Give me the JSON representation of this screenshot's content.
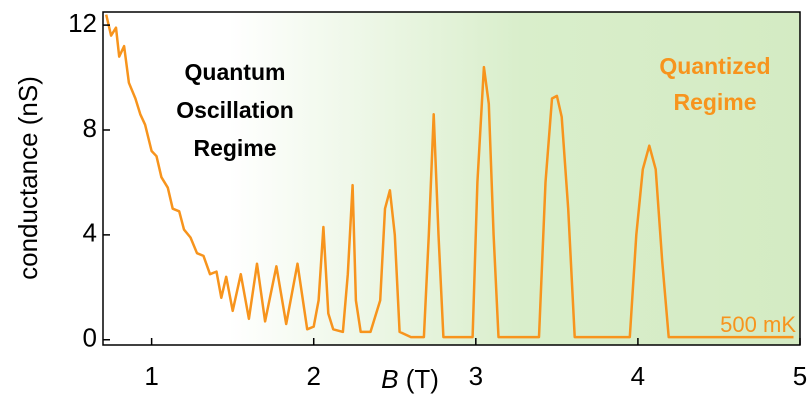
{
  "chart_data": {
    "type": "line",
    "xlabel": {
      "symbol": "B",
      "unit": "(T)"
    },
    "ylabel": "conductance (nS)",
    "annotations": [
      [
        "Quantum",
        "Oscillation",
        "Regime"
      ],
      [
        "Quantized",
        "Regime"
      ],
      [
        "500 mK"
      ]
    ],
    "xlim": [
      0.7,
      5
    ],
    "ylim": [
      -0.2,
      12.5
    ],
    "xticks": [
      1,
      2,
      3,
      4,
      5
    ],
    "yticks": [
      0,
      4,
      8,
      12
    ],
    "series": [
      {
        "name": "conductance",
        "color": "#f7941d",
        "x": [
          0.72,
          0.75,
          0.78,
          0.8,
          0.83,
          0.86,
          0.9,
          0.93,
          0.96,
          1.0,
          1.03,
          1.06,
          1.1,
          1.13,
          1.17,
          1.2,
          1.24,
          1.28,
          1.32,
          1.36,
          1.4,
          1.43,
          1.46,
          1.5,
          1.55,
          1.6,
          1.65,
          1.7,
          1.77,
          1.83,
          1.9,
          1.96,
          2.0,
          2.03,
          2.06,
          2.09,
          2.12,
          2.18,
          2.21,
          2.24,
          2.26,
          2.29,
          2.35,
          2.41,
          2.44,
          2.47,
          2.5,
          2.53,
          2.6,
          2.68,
          2.71,
          2.74,
          2.77,
          2.8,
          2.98,
          3.01,
          3.05,
          3.08,
          3.11,
          3.14,
          3.39,
          3.43,
          3.47,
          3.5,
          3.53,
          3.57,
          3.61,
          3.95,
          3.99,
          4.03,
          4.07,
          4.11,
          4.15,
          4.19,
          4.96
        ],
        "values": [
          12.4,
          11.6,
          11.9,
          10.8,
          11.2,
          9.8,
          9.2,
          8.6,
          8.2,
          7.2,
          7.0,
          6.2,
          5.8,
          5.0,
          4.9,
          4.2,
          3.9,
          3.3,
          3.2,
          2.5,
          2.6,
          1.6,
          2.4,
          1.1,
          2.5,
          0.8,
          2.9,
          0.7,
          2.8,
          0.6,
          2.9,
          0.4,
          0.5,
          1.5,
          4.3,
          1.0,
          0.4,
          0.3,
          2.5,
          5.9,
          1.5,
          0.3,
          0.3,
          1.5,
          5.0,
          5.7,
          4.0,
          0.3,
          0.1,
          0.1,
          4.0,
          8.6,
          4.0,
          0.1,
          0.1,
          6.0,
          10.4,
          9.0,
          4.0,
          0.1,
          0.1,
          6.0,
          9.2,
          9.3,
          8.5,
          5.0,
          0.1,
          0.1,
          4.0,
          6.5,
          7.4,
          6.5,
          3.0,
          0.1,
          0.1
        ]
      }
    ]
  }
}
